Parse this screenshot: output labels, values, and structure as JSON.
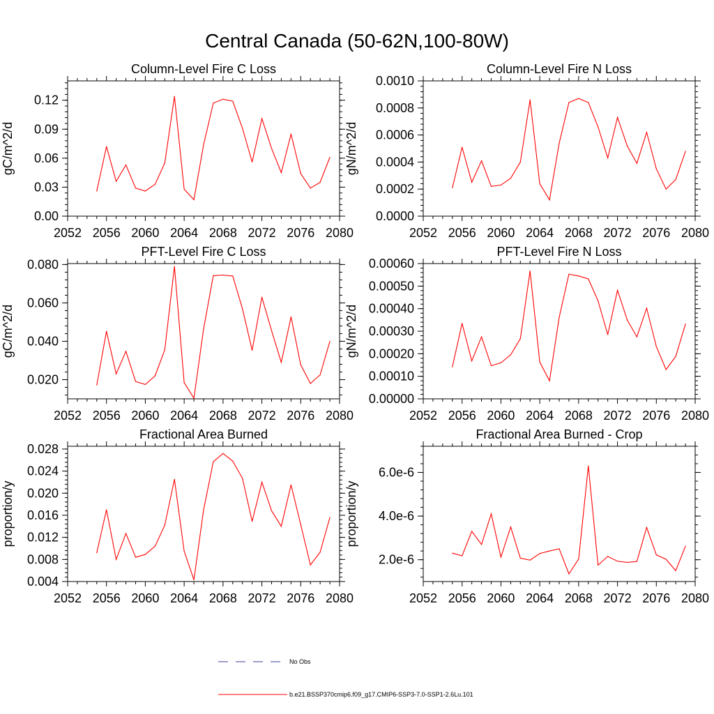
{
  "figure": {
    "title": "Central Canada (50-62N,100-80W)",
    "legend": {
      "placement": "bottom-center",
      "entries": [
        {
          "label": "No Obs",
          "color": "#3b3b9a",
          "style": "dashed"
        },
        {
          "label": "b.e21.BSSP370cmip6.f09_g17.CMIP6-SSP3-7.0-SSP1-2.6Lu.101",
          "color": "#ff0000",
          "style": "solid"
        }
      ]
    }
  },
  "chart_data": [
    {
      "type": "line",
      "title": "Column-Level Fire C Loss",
      "xlabel": "",
      "ylabel": "gC/m^2/d",
      "xlim": [
        2052,
        2080
      ],
      "ylim": [
        0.0,
        0.14
      ],
      "xticks": [
        "2052",
        "2056",
        "2060",
        "2064",
        "2068",
        "2072",
        "2076",
        "2080"
      ],
      "yticks": [
        "0.00",
        "0.03",
        "0.06",
        "0.09",
        "0.12"
      ],
      "ytick_values": [
        0.0,
        0.03,
        0.06,
        0.09,
        0.12
      ],
      "x": [
        2055,
        2056,
        2057,
        2058,
        2059,
        2060,
        2061,
        2062,
        2063,
        2064,
        2065,
        2066,
        2067,
        2068,
        2069,
        2070,
        2071,
        2072,
        2073,
        2074,
        2075,
        2076,
        2077,
        2078,
        2079
      ],
      "series": [
        {
          "color": "#ff0000",
          "values": [
            0.026,
            0.072,
            0.036,
            0.053,
            0.029,
            0.026,
            0.033,
            0.055,
            0.124,
            0.028,
            0.017,
            0.074,
            0.117,
            0.121,
            0.119,
            0.091,
            0.056,
            0.101,
            0.07,
            0.045,
            0.085,
            0.044,
            0.029,
            0.035,
            0.061
          ]
        }
      ]
    },
    {
      "type": "line",
      "title": "Column-Level Fire N Loss",
      "xlabel": "",
      "ylabel": "gN/m^2/d",
      "xlim": [
        2052,
        2080
      ],
      "ylim": [
        0.0,
        0.001
      ],
      "xticks": [
        "2052",
        "2056",
        "2060",
        "2064",
        "2068",
        "2072",
        "2076",
        "2080"
      ],
      "yticks": [
        "0.0000",
        "0.0002",
        "0.0004",
        "0.0006",
        "0.0008",
        "0.0010"
      ],
      "ytick_values": [
        0.0,
        0.0002,
        0.0004,
        0.0006,
        0.0008,
        0.001
      ],
      "x": [
        2055,
        2056,
        2057,
        2058,
        2059,
        2060,
        2061,
        2062,
        2063,
        2064,
        2065,
        2066,
        2067,
        2068,
        2069,
        2070,
        2071,
        2072,
        2073,
        2074,
        2075,
        2076,
        2077,
        2078,
        2079
      ],
      "series": [
        {
          "color": "#ff0000",
          "values": [
            0.00021,
            0.00051,
            0.00025,
            0.00041,
            0.00022,
            0.00023,
            0.00028,
            0.0004,
            0.00086,
            0.00024,
            0.00012,
            0.00054,
            0.00084,
            0.00087,
            0.00084,
            0.00066,
            0.00043,
            0.00073,
            0.00052,
            0.00039,
            0.00062,
            0.00035,
            0.0002,
            0.00027,
            0.00048
          ]
        }
      ]
    },
    {
      "type": "line",
      "title": "PFT-Level Fire C Loss",
      "xlabel": "",
      "ylabel": "gC/m^2/d",
      "xlim": [
        2052,
        2080
      ],
      "ylim": [
        0.01,
        0.0805
      ],
      "xticks": [
        "2052",
        "2056",
        "2060",
        "2064",
        "2068",
        "2072",
        "2076",
        "2080"
      ],
      "yticks": [
        "0.020",
        "0.040",
        "0.060",
        "0.080"
      ],
      "ytick_values": [
        0.02,
        0.04,
        0.06,
        0.08
      ],
      "x": [
        2055,
        2056,
        2057,
        2058,
        2059,
        2060,
        2061,
        2062,
        2063,
        2064,
        2065,
        2066,
        2067,
        2068,
        2069,
        2070,
        2071,
        2072,
        2073,
        2074,
        2075,
        2076,
        2077,
        2078,
        2079
      ],
      "series": [
        {
          "color": "#ff0000",
          "values": [
            0.0172,
            0.0452,
            0.023,
            0.0348,
            0.019,
            0.0175,
            0.022,
            0.0355,
            0.079,
            0.0185,
            0.0103,
            0.0465,
            0.0742,
            0.0745,
            0.074,
            0.057,
            0.0353,
            0.063,
            0.0455,
            0.029,
            0.0527,
            0.0277,
            0.018,
            0.0225,
            0.04
          ]
        }
      ]
    },
    {
      "type": "line",
      "title": "PFT-Level Fire N Loss",
      "xlabel": "",
      "ylabel": "gN/m^2/d",
      "xlim": [
        2052,
        2080
      ],
      "ylim": [
        0.0,
        0.0006
      ],
      "xticks": [
        "2052",
        "2056",
        "2060",
        "2064",
        "2068",
        "2072",
        "2076",
        "2080"
      ],
      "yticks": [
        "0.00000",
        "0.00010",
        "0.00020",
        "0.00030",
        "0.00040",
        "0.00050",
        "0.00060"
      ],
      "ytick_values": [
        0.0,
        0.0001,
        0.0002,
        0.0003,
        0.0004,
        0.0005,
        0.0006
      ],
      "x": [
        2055,
        2056,
        2057,
        2058,
        2059,
        2060,
        2061,
        2062,
        2063,
        2064,
        2065,
        2066,
        2067,
        2068,
        2069,
        2070,
        2071,
        2072,
        2073,
        2074,
        2075,
        2076,
        2077,
        2078,
        2079
      ],
      "series": [
        {
          "color": "#ff0000",
          "values": [
            0.000142,
            0.000335,
            0.000168,
            0.000275,
            0.000147,
            0.00016,
            0.000195,
            0.000267,
            0.000567,
            0.000163,
            8e-05,
            0.000362,
            0.000553,
            0.000545,
            0.000532,
            0.000435,
            0.000285,
            0.000482,
            0.00035,
            0.000275,
            0.000402,
            0.000232,
            0.00013,
            0.000188,
            0.000332
          ]
        }
      ]
    },
    {
      "type": "line",
      "title": "Fractional Area Burned",
      "xlabel": "",
      "ylabel": "proportion/y",
      "xlim": [
        2052,
        2080
      ],
      "ylim": [
        0.004,
        0.0285
      ],
      "xticks": [
        "2052",
        "2056",
        "2060",
        "2064",
        "2068",
        "2072",
        "2076",
        "2080"
      ],
      "yticks": [
        "0.004",
        "0.008",
        "0.012",
        "0.016",
        "0.020",
        "0.024",
        "0.028"
      ],
      "ytick_values": [
        0.004,
        0.008,
        0.012,
        0.016,
        0.02,
        0.024,
        0.028
      ],
      "x": [
        2055,
        2056,
        2057,
        2058,
        2059,
        2060,
        2061,
        2062,
        2063,
        2064,
        2065,
        2066,
        2067,
        2068,
        2069,
        2070,
        2071,
        2072,
        2073,
        2074,
        2075,
        2076,
        2077,
        2078,
        2079
      ],
      "series": [
        {
          "color": "#ff0000",
          "values": [
            0.0092,
            0.017,
            0.008,
            0.0127,
            0.0084,
            0.0089,
            0.0104,
            0.0142,
            0.0225,
            0.0095,
            0.0043,
            0.017,
            0.0257,
            0.0272,
            0.0258,
            0.0227,
            0.0149,
            0.022,
            0.0168,
            0.014,
            0.0215,
            0.0143,
            0.007,
            0.0093,
            0.0156
          ]
        }
      ]
    },
    {
      "type": "line",
      "title": "Fractional Area Burned - Crop",
      "xlabel": "",
      "ylabel": "proportion/y",
      "xlim": [
        2052,
        2080
      ],
      "ylim": [
        1e-06,
        7.2e-06
      ],
      "xticks": [
        "2052",
        "2056",
        "2060",
        "2064",
        "2068",
        "2072",
        "2076",
        "2080"
      ],
      "yticks": [
        "2.0e-6",
        "4.0e-6",
        "6.0e-6"
      ],
      "ytick_values": [
        2e-06,
        4e-06,
        6e-06
      ],
      "x": [
        2055,
        2056,
        2057,
        2058,
        2059,
        2060,
        2061,
        2062,
        2063,
        2064,
        2065,
        2066,
        2067,
        2068,
        2069,
        2070,
        2071,
        2072,
        2073,
        2074,
        2075,
        2076,
        2077,
        2078,
        2079
      ],
      "series": [
        {
          "color": "#ff0000",
          "values": [
            2.3e-06,
            2.18e-06,
            3.3e-06,
            2.7e-06,
            4.1e-06,
            2.12e-06,
            3.5e-06,
            2.07e-06,
            1.98e-06,
            2.28e-06,
            2.4e-06,
            2.5e-06,
            1.35e-06,
            2.03e-06,
            6.3e-06,
            1.75e-06,
            2.15e-06,
            1.93e-06,
            1.88e-06,
            1.92e-06,
            3.48e-06,
            2.22e-06,
            2.02e-06,
            1.5e-06,
            2.62e-06
          ]
        }
      ]
    }
  ]
}
